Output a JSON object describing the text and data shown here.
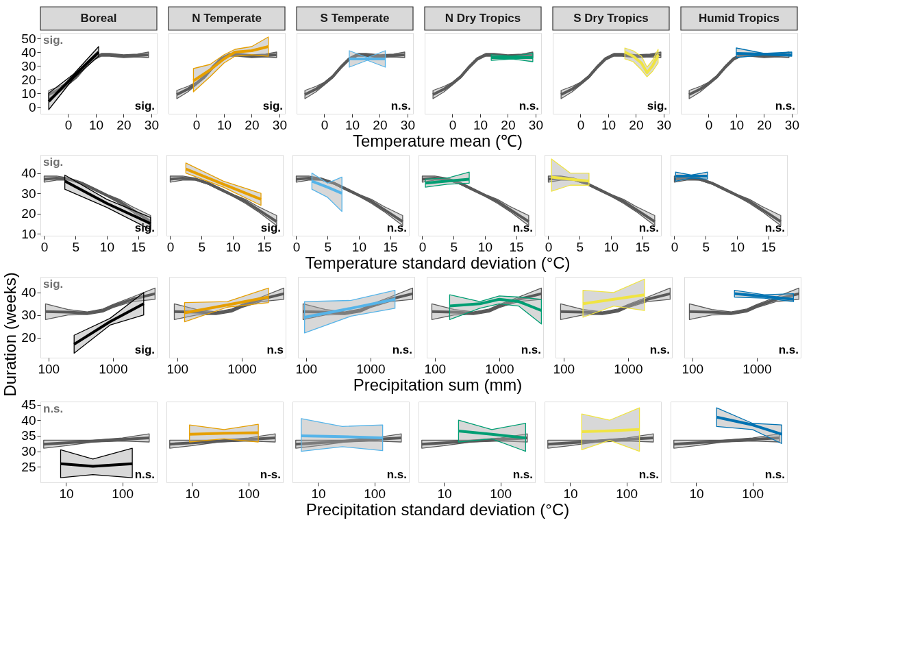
{
  "chart_data": [
    {
      "type": "line",
      "title": "Boreal",
      "xlim": [
        -10,
        32
      ],
      "ylim": [
        -5,
        54
      ],
      "xticks": [
        0,
        10,
        20,
        30
      ],
      "yticks": [
        0,
        10,
        20,
        30,
        40,
        50
      ],
      "annotations": [
        "sig.",
        "sig."
      ],
      "series": [
        {
          "color": "#595959",
          "x": [
            -7,
            -3,
            0,
            3,
            6,
            9,
            12,
            15,
            20,
            25,
            29
          ],
          "values": [
            9,
            13,
            17,
            22,
            29,
            35,
            38,
            38,
            37,
            37.5,
            38
          ],
          "lower": [
            6,
            11,
            16,
            21,
            28,
            34,
            37,
            37,
            36,
            36.5,
            36
          ],
          "upper": [
            12,
            15,
            18,
            23,
            30,
            36,
            39,
            39,
            38,
            38.5,
            40
          ]
        },
        {
          "color": "#000000",
          "x": [
            -7,
            2,
            11
          ],
          "values": [
            4,
            22.5,
            40
          ],
          "lower": [
            -2,
            21,
            37
          ],
          "upper": [
            10,
            24,
            44
          ]
        }
      ]
    },
    {
      "type": "line",
      "title": "N Temperate",
      "xlim": [
        -10,
        32
      ],
      "ylim": [
        -5,
        54
      ],
      "xticks": [
        0,
        10,
        20,
        30
      ],
      "yticks": [
        0,
        10,
        20,
        30,
        40,
        50
      ],
      "tick_labels": "x",
      "annotations": [
        "sig."
      ],
      "series": [
        {
          "color": "#595959",
          "x": [
            -7,
            -3,
            0,
            3,
            6,
            9,
            12,
            15,
            20,
            25,
            29
          ],
          "values": [
            9,
            13,
            17,
            22,
            29,
            35,
            38,
            38,
            37,
            37.5,
            38
          ],
          "lower": [
            6,
            11,
            16,
            21,
            28,
            34,
            37,
            37,
            36,
            36.5,
            36
          ],
          "upper": [
            12,
            15,
            18,
            23,
            30,
            36,
            39,
            39,
            38,
            38.5,
            40
          ]
        },
        {
          "color": "#e69f00",
          "x": [
            -1,
            5,
            10,
            14,
            20,
            26
          ],
          "values": [
            19,
            27,
            35,
            40,
            41,
            44
          ],
          "lower": [
            11,
            22,
            32,
            37,
            38,
            37
          ],
          "upper": [
            28,
            31,
            38,
            42,
            44,
            51
          ]
        }
      ]
    },
    {
      "type": "line",
      "title": "S Temperate",
      "xlabel": "Temperature mean (℃)",
      "xlim": [
        -10,
        32
      ],
      "ylim": [
        -5,
        54
      ],
      "xticks": [
        0,
        10,
        20,
        30
      ],
      "yticks": [
        0,
        10,
        20,
        30,
        40,
        50
      ],
      "tick_labels": "x",
      "annotations": [
        "n.s."
      ],
      "series": [
        {
          "color": "#595959",
          "x": [
            -7,
            -3,
            0,
            3,
            6,
            9,
            12,
            15,
            20,
            25,
            29
          ],
          "values": [
            9,
            13,
            17,
            22,
            29,
            35,
            38,
            38,
            37,
            37.5,
            38
          ],
          "lower": [
            6,
            11,
            16,
            21,
            28,
            34,
            37,
            37,
            36,
            36.5,
            36
          ],
          "upper": [
            12,
            15,
            18,
            23,
            30,
            36,
            39,
            39,
            38,
            38.5,
            40
          ]
        },
        {
          "color": "#56b4e9",
          "x": [
            9,
            15.5,
            22
          ],
          "values": [
            35,
            35,
            35
          ],
          "lower": [
            29,
            34,
            29
          ],
          "upper": [
            41,
            36,
            41
          ]
        }
      ]
    },
    {
      "type": "line",
      "title": "N Dry Tropics",
      "xlim": [
        -10,
        32
      ],
      "ylim": [
        -5,
        54
      ],
      "xticks": [
        0,
        10,
        20,
        30
      ],
      "yticks": [
        0,
        10,
        20,
        30,
        40,
        50
      ],
      "tick_labels": "x",
      "annotations": [
        "n.s."
      ],
      "series": [
        {
          "color": "#595959",
          "x": [
            -7,
            -3,
            0,
            3,
            6,
            9,
            12,
            15,
            20,
            25,
            29
          ],
          "values": [
            9,
            13,
            17,
            22,
            29,
            35,
            38,
            38,
            37,
            37.5,
            38
          ],
          "lower": [
            6,
            11,
            16,
            21,
            28,
            34,
            37,
            37,
            36,
            36.5,
            36
          ],
          "upper": [
            12,
            15,
            18,
            23,
            30,
            36,
            39,
            39,
            38,
            38.5,
            40
          ]
        },
        {
          "color": "#009e73",
          "x": [
            14,
            21.5,
            29
          ],
          "values": [
            36,
            36,
            36
          ],
          "lower": [
            34,
            35,
            33
          ],
          "upper": [
            38,
            37,
            39
          ]
        }
      ]
    },
    {
      "type": "line",
      "title": "S Dry Tropics",
      "xlim": [
        -10,
        32
      ],
      "ylim": [
        -5,
        54
      ],
      "xticks": [
        0,
        10,
        20,
        30
      ],
      "yticks": [
        0,
        10,
        20,
        30,
        40,
        50
      ],
      "tick_labels": "x",
      "annotations": [
        "sig."
      ],
      "series": [
        {
          "color": "#595959",
          "x": [
            -7,
            -3,
            0,
            3,
            6,
            9,
            12,
            15,
            20,
            25,
            29
          ],
          "values": [
            9,
            13,
            17,
            22,
            29,
            35,
            38,
            38,
            37,
            37.5,
            38
          ],
          "lower": [
            6,
            11,
            16,
            21,
            28,
            34,
            37,
            37,
            36,
            36.5,
            36
          ],
          "upper": [
            12,
            15,
            18,
            23,
            30,
            36,
            39,
            39,
            38,
            38.5,
            40
          ]
        },
        {
          "color": "#f0e442",
          "x": [
            16,
            19,
            22,
            24,
            26,
            28
          ],
          "values": [
            40,
            37,
            32,
            25,
            30,
            38
          ],
          "lower": [
            35,
            33,
            27,
            22,
            26,
            32
          ],
          "upper": [
            43,
            41,
            37,
            29,
            34,
            42
          ]
        }
      ]
    },
    {
      "type": "line",
      "title": "Humid Tropics",
      "xlim": [
        -10,
        32
      ],
      "ylim": [
        -5,
        54
      ],
      "xticks": [
        0,
        10,
        20,
        30
      ],
      "yticks": [
        0,
        10,
        20,
        30,
        40,
        50
      ],
      "tick_labels": "x",
      "annotations": [
        "n.s."
      ],
      "series": [
        {
          "color": "#595959",
          "x": [
            -7,
            -3,
            0,
            3,
            6,
            9,
            12,
            15,
            20,
            25,
            29
          ],
          "values": [
            9,
            13,
            17,
            22,
            29,
            35,
            38,
            38,
            37,
            37.5,
            38
          ],
          "lower": [
            6,
            11,
            16,
            21,
            28,
            34,
            37,
            37,
            36,
            36.5,
            36
          ],
          "upper": [
            12,
            15,
            18,
            23,
            30,
            36,
            39,
            39,
            38,
            38.5,
            40
          ]
        },
        {
          "color": "#0072b2",
          "x": [
            10,
            20,
            30
          ],
          "values": [
            39,
            38.5,
            38
          ],
          "lower": [
            36,
            38,
            37
          ],
          "upper": [
            43,
            39,
            40
          ]
        }
      ]
    },
    {
      "type": "line",
      "ylabel": "Duration (weeks)",
      "xlim": [
        -0.6,
        18
      ],
      "ylim": [
        9,
        49
      ],
      "xticks": [
        0,
        5,
        10,
        15
      ],
      "yticks": [
        10,
        20,
        30,
        40
      ],
      "annotations": [
        "sig.",
        "sig."
      ],
      "series": [
        {
          "color": "#595959",
          "x": [
            0,
            2,
            4,
            6,
            8,
            10,
            12,
            14,
            17
          ],
          "values": [
            37,
            37.5,
            37,
            35,
            32,
            29,
            26,
            22,
            16
          ],
          "lower": [
            35.5,
            36.5,
            36.5,
            34.5,
            31.5,
            28.5,
            25,
            21,
            14
          ],
          "upper": [
            38.5,
            38.5,
            37.5,
            35.5,
            32.5,
            29.5,
            27,
            23.5,
            19
          ]
        },
        {
          "color": "#000000",
          "x": [
            3.3,
            10,
            17
          ],
          "values": [
            36,
            25,
            15
          ],
          "lower": [
            32,
            23,
            12
          ],
          "upper": [
            39,
            27,
            18
          ]
        }
      ]
    },
    {
      "type": "line",
      "xlim": [
        -0.6,
        18
      ],
      "ylim": [
        9,
        49
      ],
      "xticks": [
        0,
        5,
        10,
        15
      ],
      "yticks": [
        10,
        20,
        30,
        40
      ],
      "tick_labels": "x",
      "annotations": [
        "sig."
      ],
      "series": [
        {
          "color": "#595959",
          "x": [
            0,
            2,
            4,
            6,
            8,
            10,
            12,
            14,
            17
          ],
          "values": [
            37,
            37.5,
            37,
            35,
            32,
            29,
            26,
            22,
            16
          ],
          "lower": [
            35.5,
            36.5,
            36.5,
            34.5,
            31.5,
            28.5,
            25,
            21,
            14
          ],
          "upper": [
            38.5,
            38.5,
            37.5,
            35.5,
            32.5,
            29.5,
            27,
            23.5,
            19
          ]
        },
        {
          "color": "#e69f00",
          "x": [
            2.5,
            8.5,
            14.5
          ],
          "values": [
            42,
            34.5,
            27
          ],
          "lower": [
            40,
            33,
            24
          ],
          "upper": [
            45,
            36,
            30
          ]
        }
      ]
    },
    {
      "type": "line",
      "xlabel": "Temperature standard deviation (°C)",
      "xlim": [
        -0.6,
        18
      ],
      "ylim": [
        9,
        49
      ],
      "xticks": [
        0,
        5,
        10,
        15
      ],
      "yticks": [
        10,
        20,
        30,
        40
      ],
      "tick_labels": "x",
      "annotations": [
        "n.s."
      ],
      "series": [
        {
          "color": "#595959",
          "x": [
            0,
            2,
            4,
            6,
            8,
            10,
            12,
            14,
            17
          ],
          "values": [
            37,
            37.5,
            37,
            35,
            32,
            29,
            26,
            22,
            16
          ],
          "lower": [
            35.5,
            36.5,
            36.5,
            34.5,
            31.5,
            28.5,
            25,
            21,
            14
          ],
          "upper": [
            38.5,
            38.5,
            37.5,
            35.5,
            32.5,
            29.5,
            27,
            23.5,
            19
          ]
        },
        {
          "color": "#56b4e9",
          "x": [
            2.5,
            5,
            7.3
          ],
          "values": [
            36,
            33,
            30
          ],
          "lower": [
            32,
            28,
            21
          ],
          "upper": [
            40,
            35,
            38
          ]
        }
      ]
    },
    {
      "type": "line",
      "xlim": [
        -0.6,
        18
      ],
      "ylim": [
        9,
        49
      ],
      "xticks": [
        0,
        5,
        10,
        15
      ],
      "yticks": [
        10,
        20,
        30,
        40
      ],
      "tick_labels": "x",
      "annotations": [
        "n.s."
      ],
      "series": [
        {
          "color": "#595959",
          "x": [
            0,
            2,
            4,
            6,
            8,
            10,
            12,
            14,
            17
          ],
          "values": [
            37,
            37.5,
            37,
            35,
            32,
            29,
            26,
            22,
            16
          ],
          "lower": [
            35.5,
            36.5,
            36.5,
            34.5,
            31.5,
            28.5,
            25,
            21,
            14
          ],
          "upper": [
            38.5,
            38.5,
            37.5,
            35.5,
            32.5,
            29.5,
            27,
            23.5,
            19
          ]
        },
        {
          "color": "#009e73",
          "x": [
            0.5,
            4,
            7.5
          ],
          "values": [
            35,
            36,
            37
          ],
          "lower": [
            33,
            34.5,
            35
          ],
          "upper": [
            37,
            37.5,
            40.5
          ]
        }
      ]
    },
    {
      "type": "line",
      "xlim": [
        -0.6,
        18
      ],
      "ylim": [
        9,
        49
      ],
      "xticks": [
        0,
        5,
        10,
        15
      ],
      "yticks": [
        10,
        20,
        30,
        40
      ],
      "tick_labels": "x",
      "annotations": [
        "n.s."
      ],
      "series": [
        {
          "color": "#595959",
          "x": [
            0,
            2,
            4,
            6,
            8,
            10,
            12,
            14,
            17
          ],
          "values": [
            37,
            37.5,
            37,
            35,
            32,
            29,
            26,
            22,
            16
          ],
          "lower": [
            35.5,
            36.5,
            36.5,
            34.5,
            31.5,
            28.5,
            25,
            21,
            14
          ],
          "upper": [
            38.5,
            38.5,
            37.5,
            35.5,
            32.5,
            29.5,
            27,
            23.5,
            19
          ]
        },
        {
          "color": "#f0e442",
          "x": [
            0.5,
            3.5,
            6.5
          ],
          "values": [
            38,
            37,
            36
          ],
          "lower": [
            31,
            34,
            34
          ],
          "upper": [
            47,
            40,
            40
          ]
        }
      ]
    },
    {
      "type": "line",
      "xlim": [
        -0.6,
        18
      ],
      "ylim": [
        9,
        49
      ],
      "xticks": [
        0,
        5,
        10,
        15
      ],
      "yticks": [
        10,
        20,
        30,
        40
      ],
      "tick_labels": "x",
      "annotations": [
        "n.s."
      ],
      "series": [
        {
          "color": "#595959",
          "x": [
            0,
            2,
            4,
            6,
            8,
            10,
            12,
            14,
            17
          ],
          "values": [
            37,
            37.5,
            37,
            35,
            32,
            29,
            26,
            22,
            16
          ],
          "lower": [
            35.5,
            36.5,
            36.5,
            34.5,
            31.5,
            28.5,
            25,
            21,
            14
          ],
          "upper": [
            38.5,
            38.5,
            37.5,
            35.5,
            32.5,
            29.5,
            27,
            23.5,
            19
          ]
        },
        {
          "color": "#0072b2",
          "x": [
            0.2,
            2.7,
            5.3
          ],
          "values": [
            38.5,
            38.5,
            38.5
          ],
          "lower": [
            36,
            37.5,
            37
          ],
          "upper": [
            40.5,
            39,
            40.5
          ]
        }
      ]
    },
    {
      "type": "line",
      "log": "x",
      "xlim": [
        75,
        4800
      ],
      "ylim": [
        11,
        47
      ],
      "xticks": [
        100,
        1000
      ],
      "yticks": [
        20,
        30,
        40
      ],
      "annotations": [
        "sig.",
        "sig."
      ],
      "series": [
        {
          "color": "#595959",
          "x": [
            90,
            200,
            400,
            700,
            1000,
            2000,
            4500
          ],
          "values": [
            31.5,
            31.3,
            30.8,
            32,
            34,
            37,
            39.5
          ],
          "lower": [
            28,
            30,
            30.2,
            31.3,
            33.3,
            36,
            37
          ],
          "upper": [
            35,
            32.5,
            31.4,
            32.7,
            34.7,
            38,
            42
          ]
        },
        {
          "color": "#000000",
          "x": [
            250,
            900,
            3000
          ],
          "values": [
            17,
            27,
            35
          ],
          "lower": [
            13,
            25.5,
            30
          ],
          "upper": [
            21,
            28.5,
            40
          ]
        }
      ]
    },
    {
      "type": "line",
      "log": "x",
      "xlim": [
        75,
        4800
      ],
      "ylim": [
        11,
        47
      ],
      "xticks": [
        100,
        1000
      ],
      "yticks": [
        20,
        30,
        40
      ],
      "tick_labels": "x",
      "annotations": [
        "n.s"
      ],
      "series": [
        {
          "color": "#595959",
          "x": [
            90,
            200,
            400,
            700,
            1000,
            2000,
            4500
          ],
          "values": [
            31.5,
            31.3,
            30.8,
            32,
            34,
            37,
            39.5
          ],
          "lower": [
            28,
            30,
            30.2,
            31.3,
            33.3,
            36,
            37
          ],
          "upper": [
            35,
            32.5,
            31.4,
            32.7,
            34.7,
            38,
            42
          ]
        },
        {
          "color": "#e69f00",
          "x": [
            130,
            600,
            2600
          ],
          "values": [
            31,
            34.5,
            38
          ],
          "lower": [
            27,
            33.5,
            35.5
          ],
          "upper": [
            35.5,
            36,
            42
          ]
        }
      ]
    },
    {
      "type": "line",
      "log": "x",
      "xlabel": "Precipitation sum (mm)",
      "xlim": [
        75,
        4800
      ],
      "ylim": [
        11,
        47
      ],
      "xticks": [
        100,
        1000
      ],
      "yticks": [
        20,
        30,
        40
      ],
      "tick_labels": "x",
      "annotations": [
        "n.s."
      ],
      "series": [
        {
          "color": "#595959",
          "x": [
            90,
            200,
            400,
            700,
            1000,
            2000,
            4500
          ],
          "values": [
            31.5,
            31.3,
            30.8,
            32,
            34,
            37,
            39.5
          ],
          "lower": [
            28,
            30,
            30.2,
            31.3,
            33.3,
            36,
            37
          ],
          "upper": [
            35,
            32.5,
            31.4,
            32.7,
            34.7,
            38,
            42
          ]
        },
        {
          "color": "#56b4e9",
          "x": [
            95,
            500,
            2400
          ],
          "values": [
            29,
            33,
            37
          ],
          "lower": [
            22,
            29.5,
            33
          ],
          "upper": [
            36,
            36.5,
            41
          ]
        }
      ]
    },
    {
      "type": "line",
      "log": "x",
      "xlim": [
        75,
        4800
      ],
      "ylim": [
        11,
        47
      ],
      "xticks": [
        100,
        1000
      ],
      "yticks": [
        20,
        30,
        40
      ],
      "tick_labels": "x",
      "annotations": [
        "n.s."
      ],
      "series": [
        {
          "color": "#595959",
          "x": [
            90,
            200,
            400,
            700,
            1000,
            2000,
            4500
          ],
          "values": [
            31.5,
            31.3,
            30.8,
            32,
            34,
            37,
            39.5
          ],
          "lower": [
            28,
            30,
            30.2,
            31.3,
            33.3,
            36,
            37
          ],
          "upper": [
            35,
            32.5,
            31.4,
            32.7,
            34.7,
            38,
            42
          ]
        },
        {
          "color": "#009e73",
          "x": [
            170,
            500,
            1000,
            2000,
            4500
          ],
          "values": [
            34,
            35,
            37,
            36,
            32
          ],
          "lower": [
            28,
            33,
            35,
            34,
            26
          ],
          "upper": [
            39,
            36,
            38.5,
            38,
            37
          ]
        }
      ]
    },
    {
      "type": "line",
      "log": "x",
      "xlim": [
        75,
        4800
      ],
      "ylim": [
        11,
        47
      ],
      "xticks": [
        100,
        1000
      ],
      "yticks": [
        20,
        30,
        40
      ],
      "tick_labels": "x",
      "annotations": [
        "n.s."
      ],
      "series": [
        {
          "color": "#595959",
          "x": [
            90,
            200,
            400,
            700,
            1000,
            2000,
            4500
          ],
          "values": [
            31.5,
            31.3,
            30.8,
            32,
            34,
            37,
            39.5
          ],
          "lower": [
            28,
            30,
            30.2,
            31.3,
            33.3,
            36,
            37
          ],
          "upper": [
            35,
            32.5,
            31.4,
            32.7,
            34.7,
            38,
            42
          ]
        },
        {
          "color": "#f0e442",
          "x": [
            200,
            600,
            1800
          ],
          "values": [
            35,
            37,
            39
          ],
          "lower": [
            29,
            34,
            32
          ],
          "upper": [
            41,
            40,
            46
          ]
        }
      ]
    },
    {
      "type": "line",
      "log": "x",
      "xlim": [
        75,
        4800
      ],
      "ylim": [
        11,
        47
      ],
      "xticks": [
        100,
        1000
      ],
      "yticks": [
        20,
        30,
        40
      ],
      "tick_labels": "x",
      "annotations": [
        "n.s."
      ],
      "series": [
        {
          "color": "#595959",
          "x": [
            90,
            200,
            400,
            700,
            1000,
            2000,
            4500
          ],
          "values": [
            31.5,
            31.3,
            30.8,
            32,
            34,
            37,
            39.5
          ],
          "lower": [
            28,
            30,
            30.2,
            31.3,
            33.3,
            36,
            37
          ],
          "upper": [
            35,
            32.5,
            31.4,
            32.7,
            34.7,
            38,
            42
          ]
        },
        {
          "color": "#0072b2",
          "x": [
            450,
            1300,
            3700
          ],
          "values": [
            39.5,
            38.3,
            37
          ],
          "lower": [
            38,
            37.5,
            36
          ],
          "upper": [
            41,
            39,
            39.5
          ]
        }
      ]
    },
    {
      "type": "line",
      "log": "x",
      "xlim": [
        3.5,
        410
      ],
      "ylim": [
        20,
        46
      ],
      "xticks": [
        10,
        100
      ],
      "yticks": [
        25,
        30,
        35,
        40,
        45
      ],
      "annotations": [
        "n.s.",
        "n.s."
      ],
      "series": [
        {
          "color": "#595959",
          "x": [
            4,
            10,
            30,
            100,
            300
          ],
          "values": [
            32.3,
            32.7,
            33.3,
            33.8,
            34.3
          ],
          "lower": [
            31,
            31.8,
            33,
            33.3,
            33
          ],
          "upper": [
            33.6,
            33.6,
            33.6,
            34.3,
            35.6
          ]
        },
        {
          "color": "#000000",
          "x": [
            8,
            30,
            150
          ],
          "values": [
            26,
            25.2,
            26
          ],
          "lower": [
            21.5,
            22.5,
            21.5
          ],
          "upper": [
            30.5,
            27.5,
            31
          ]
        }
      ]
    },
    {
      "type": "line",
      "log": "x",
      "xlim": [
        3.5,
        410
      ],
      "ylim": [
        20,
        46
      ],
      "xticks": [
        10,
        100
      ],
      "yticks": [
        25,
        30,
        35,
        40,
        45
      ],
      "tick_labels": "x",
      "annotations": [
        "n-s."
      ],
      "series": [
        {
          "color": "#595959",
          "x": [
            4,
            10,
            30,
            100,
            300
          ],
          "values": [
            32.3,
            32.7,
            33.3,
            33.8,
            34.3
          ],
          "lower": [
            31,
            31.8,
            33,
            33.3,
            33
          ],
          "upper": [
            33.6,
            33.6,
            33.6,
            34.3,
            35.6
          ]
        },
        {
          "color": "#e69f00",
          "x": [
            9,
            37,
            150
          ],
          "values": [
            35.5,
            35.8,
            36
          ],
          "lower": [
            33,
            34,
            33
          ],
          "upper": [
            38.5,
            37,
            38.7
          ]
        }
      ]
    },
    {
      "type": "line",
      "log": "x",
      "xlabel": "Precipitation standard deviation (°C)",
      "xlim": [
        3.5,
        410
      ],
      "ylim": [
        20,
        46
      ],
      "xticks": [
        10,
        100
      ],
      "yticks": [
        25,
        30,
        35,
        40,
        45
      ],
      "tick_labels": "x",
      "annotations": [
        "n.s."
      ],
      "series": [
        {
          "color": "#595959",
          "x": [
            4,
            10,
            30,
            100,
            300
          ],
          "values": [
            32.3,
            32.7,
            33.3,
            33.8,
            34.3
          ],
          "lower": [
            31,
            31.8,
            33,
            33.3,
            33
          ],
          "upper": [
            33.6,
            33.6,
            33.6,
            34.3,
            35.6
          ]
        },
        {
          "color": "#56b4e9",
          "x": [
            5,
            27,
            140
          ],
          "values": [
            35,
            34.7,
            34.3
          ],
          "lower": [
            30,
            31.5,
            30.2
          ],
          "upper": [
            40.5,
            38,
            38.5
          ]
        }
      ]
    },
    {
      "type": "line",
      "log": "x",
      "xlim": [
        3.5,
        410
      ],
      "ylim": [
        20,
        46
      ],
      "xticks": [
        10,
        100
      ],
      "yticks": [
        25,
        30,
        35,
        40,
        45
      ],
      "tick_labels": "x",
      "annotations": [
        "n.s."
      ],
      "series": [
        {
          "color": "#595959",
          "x": [
            4,
            10,
            30,
            100,
            300
          ],
          "values": [
            32.3,
            32.7,
            33.3,
            33.8,
            34.3
          ],
          "lower": [
            31,
            31.8,
            33,
            33.3,
            33
          ],
          "upper": [
            33.6,
            33.6,
            33.6,
            34.3,
            35.6
          ]
        },
        {
          "color": "#009e73",
          "x": [
            18,
            70,
            280
          ],
          "values": [
            36.5,
            35.5,
            34.3
          ],
          "lower": [
            33,
            34,
            30
          ],
          "upper": [
            40,
            37,
            39
          ]
        }
      ]
    },
    {
      "type": "line",
      "log": "x",
      "xlim": [
        3.5,
        410
      ],
      "ylim": [
        20,
        46
      ],
      "xticks": [
        10,
        100
      ],
      "yticks": [
        25,
        30,
        35,
        40,
        45
      ],
      "tick_labels": "x",
      "annotations": [
        "n.s."
      ],
      "series": [
        {
          "color": "#595959",
          "x": [
            4,
            10,
            30,
            100,
            300
          ],
          "values": [
            32.3,
            32.7,
            33.3,
            33.8,
            34.3
          ],
          "lower": [
            31,
            31.8,
            33,
            33.3,
            33
          ],
          "upper": [
            33.6,
            33.6,
            33.6,
            34.3,
            35.6
          ]
        },
        {
          "color": "#f0e442",
          "x": [
            16,
            50,
            170
          ],
          "values": [
            36.3,
            36.6,
            37
          ],
          "lower": [
            30.5,
            33.5,
            30
          ],
          "upper": [
            42,
            40,
            44
          ]
        }
      ]
    },
    {
      "type": "line",
      "log": "x",
      "xlim": [
        3.5,
        410
      ],
      "ylim": [
        20,
        46
      ],
      "xticks": [
        10,
        100
      ],
      "yticks": [
        25,
        30,
        35,
        40,
        45
      ],
      "tick_labels": "x",
      "annotations": [
        "n.s."
      ],
      "series": [
        {
          "color": "#595959",
          "x": [
            4,
            10,
            30,
            100,
            300
          ],
          "values": [
            32.3,
            32.7,
            33.3,
            33.8,
            34.3
          ],
          "lower": [
            31,
            31.8,
            33,
            33.3,
            33
          ],
          "upper": [
            33.6,
            33.6,
            33.6,
            34.3,
            35.6
          ]
        },
        {
          "color": "#0072b2",
          "x": [
            23,
            100,
            330
          ],
          "values": [
            41,
            38.5,
            35.5
          ],
          "lower": [
            38,
            37,
            32.5
          ],
          "upper": [
            44,
            39,
            38.5
          ]
        }
      ]
    }
  ]
}
